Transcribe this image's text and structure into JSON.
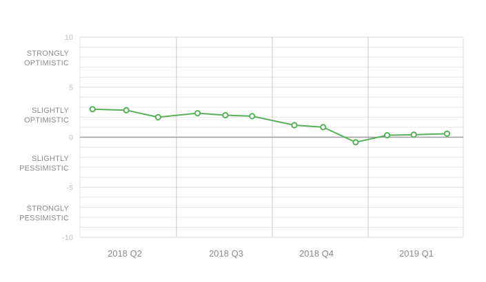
{
  "chart_data": {
    "type": "line",
    "title": "",
    "xlabel": "",
    "ylabel": "",
    "ylim": [
      -10,
      10
    ],
    "y_ticks": [
      "10",
      "5",
      "0",
      "-5",
      "-10"
    ],
    "y_band_labels": [
      {
        "value": 8,
        "lines": [
          "STRONGLY",
          "OPTIMISTIC"
        ]
      },
      {
        "value": 2.3,
        "lines": [
          "SLIGHTLY",
          "OPTIMISTIC"
        ]
      },
      {
        "value": -2.5,
        "lines": [
          "SLIGHTLY",
          "PESSIMISTIC"
        ]
      },
      {
        "value": -7.5,
        "lines": [
          "STRONGLY",
          "PESSIMISTIC"
        ]
      }
    ],
    "quarters": [
      "2018 Q2",
      "2018 Q3",
      "2018 Q4",
      "2019 Q1"
    ],
    "grid": true,
    "series": [
      {
        "color": "#55b157",
        "points": [
          {
            "quarter": 0,
            "pos": 0.13,
            "y": 2.8
          },
          {
            "quarter": 0,
            "pos": 0.48,
            "y": 2.7
          },
          {
            "quarter": 0,
            "pos": 0.81,
            "y": 2.0
          },
          {
            "quarter": 1,
            "pos": 0.22,
            "y": 2.4
          },
          {
            "quarter": 1,
            "pos": 0.51,
            "y": 2.2
          },
          {
            "quarter": 1,
            "pos": 0.79,
            "y": 2.1
          },
          {
            "quarter": 2,
            "pos": 0.23,
            "y": 1.2
          },
          {
            "quarter": 2,
            "pos": 0.53,
            "y": 1.0
          },
          {
            "quarter": 2,
            "pos": 0.87,
            "y": -0.5
          },
          {
            "quarter": 3,
            "pos": 0.2,
            "y": 0.2
          },
          {
            "quarter": 3,
            "pos": 0.48,
            "y": 0.25
          },
          {
            "quarter": 3,
            "pos": 0.83,
            "y": 0.35
          }
        ]
      }
    ]
  },
  "colors": {
    "line": "#55b157",
    "grid": "#e6e6e6",
    "zero_line": "#9a9a9a",
    "divider": "#c8c8c8"
  }
}
